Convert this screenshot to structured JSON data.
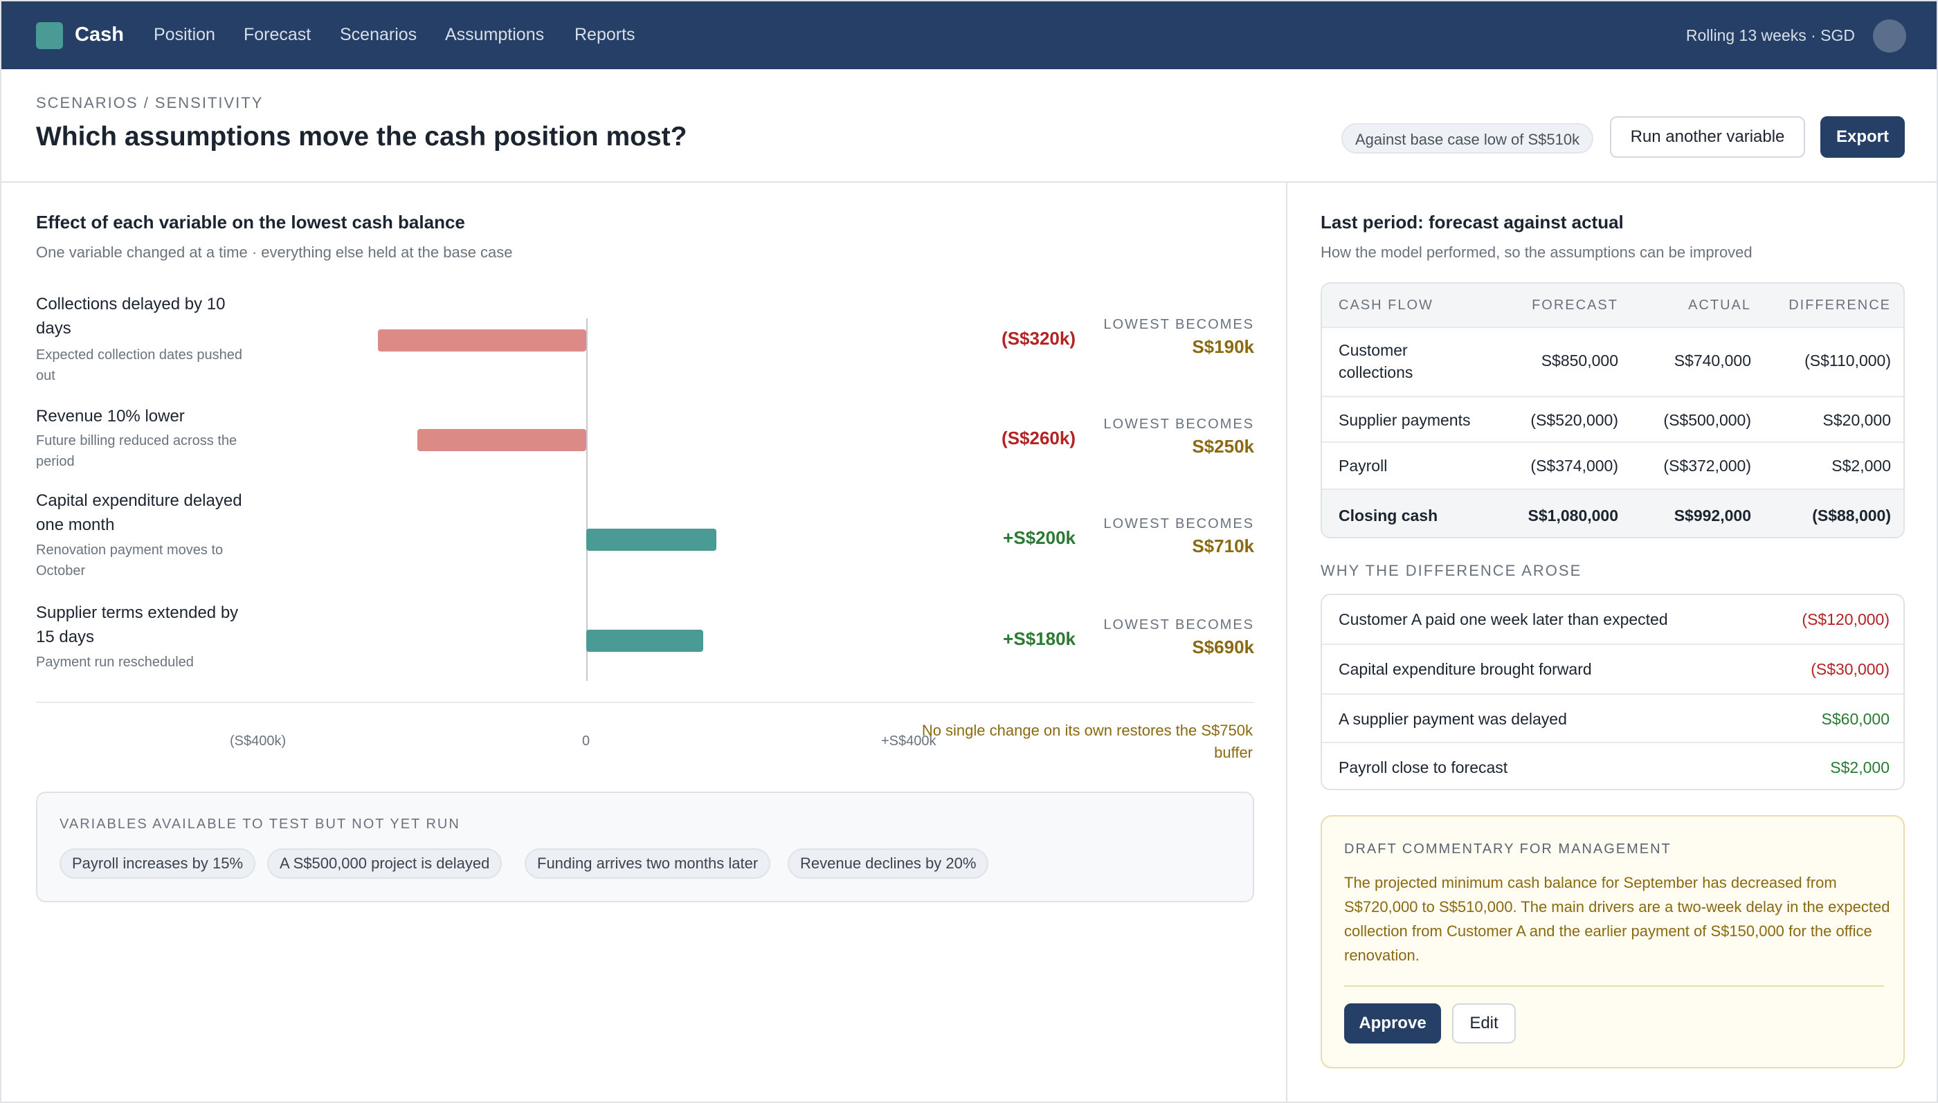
{
  "app": {
    "brand": "Cash",
    "nav": [
      "Position",
      "Forecast",
      "Scenarios",
      "Assumptions",
      "Reports"
    ],
    "context": "Rolling 13 weeks · SGD"
  },
  "header": {
    "breadcrumb": "SCENARIOS / SENSITIVITY",
    "title": "Which assumptions move the cash position most?",
    "base_pill": "Against base case low of S$510k",
    "run_button": "Run another variable",
    "export_button": "Export"
  },
  "sensitivity": {
    "title": "Effect of each variable on the lowest cash balance",
    "subtitle": "One variable changed at a time · everything else held at the base case",
    "lowest_label": "LOWEST BECOMES",
    "variables": [
      {
        "name": "Collections delayed by 10 days",
        "desc": "Expected collection dates pushed out",
        "effect_label": "(S$320k)",
        "lowest": "S$190k"
      },
      {
        "name": "Revenue 10% lower",
        "desc": "Future billing reduced across the period",
        "effect_label": "(S$260k)",
        "lowest": "S$250k"
      },
      {
        "name": "Capital expenditure delayed one month",
        "desc": "Renovation payment moves to October",
        "effect_label": "+S$200k",
        "lowest": "S$710k"
      },
      {
        "name": "Supplier terms extended by 15 days",
        "desc": "Payment run rescheduled",
        "effect_label": "+S$180k",
        "lowest": "S$690k"
      }
    ],
    "axis_ticks": [
      "(S$400k)",
      "0",
      "+S$400k"
    ],
    "note": "No single change on its own restores the S$750k buffer"
  },
  "chart_data": {
    "type": "bar",
    "orientation": "horizontal",
    "categories": [
      "Collections delayed by 10 days",
      "Revenue 10% lower",
      "Capital expenditure delayed one month",
      "Supplier terms extended by 15 days"
    ],
    "values": [
      -320,
      -260,
      200,
      180
    ],
    "units": "S$k",
    "xlim": [
      -400,
      400
    ],
    "positive_color": "#4a9a96",
    "negative_color": "#db8a86"
  },
  "untested": {
    "heading": "VARIABLES AVAILABLE TO TEST BUT NOT YET RUN",
    "chips": [
      "Payroll increases by 15%",
      "A S$500,000 project is delayed",
      "Funding arrives two months later",
      "Revenue declines by 20%"
    ]
  },
  "last_period": {
    "title": "Last period: forecast against actual",
    "subtitle": "How the model performed, so the assumptions can be improved",
    "columns": [
      "CASH FLOW",
      "FORECAST",
      "ACTUAL",
      "DIFFERENCE"
    ],
    "rows": [
      {
        "flow": "Customer collections",
        "forecast": "S$850,000",
        "actual": "S$740,000",
        "diff": "(S$110,000)"
      },
      {
        "flow": "Supplier payments",
        "forecast": "(S$520,000)",
        "actual": "(S$500,000)",
        "diff": "S$20,000"
      },
      {
        "flow": "Payroll",
        "forecast": "(S$374,000)",
        "actual": "(S$372,000)",
        "diff": "S$2,000"
      },
      {
        "flow": "Closing cash",
        "forecast": "S$1,080,000",
        "actual": "S$992,000",
        "diff": "(S$88,000)"
      }
    ]
  },
  "why": {
    "heading": "WHY THE DIFFERENCE AROSE",
    "items": [
      {
        "label": "Customer A paid one week later than expected",
        "amount": "(S$120,000)"
      },
      {
        "label": "Capital expenditure brought forward",
        "amount": "(S$30,000)"
      },
      {
        "label": "A supplier payment was delayed",
        "amount": "S$60,000"
      },
      {
        "label": "Payroll close to forecast",
        "amount": "S$2,000"
      }
    ]
  },
  "commentary": {
    "heading": "DRAFT COMMENTARY FOR MANAGEMENT",
    "body": "The projected minimum cash balance for September has decreased from S$720,000 to S$510,000. The main drivers are a two-week delay in the expected collection from Customer A and the earlier payment of S$150,000 for the office renovation.",
    "approve": "Approve",
    "edit": "Edit"
  },
  "colors": {
    "nav_bg": "#263f66",
    "accent_teal": "#4a9a96",
    "negative_red": "#b42323",
    "positive_green": "#2a7a34",
    "amber_text": "#8a6a10"
  }
}
